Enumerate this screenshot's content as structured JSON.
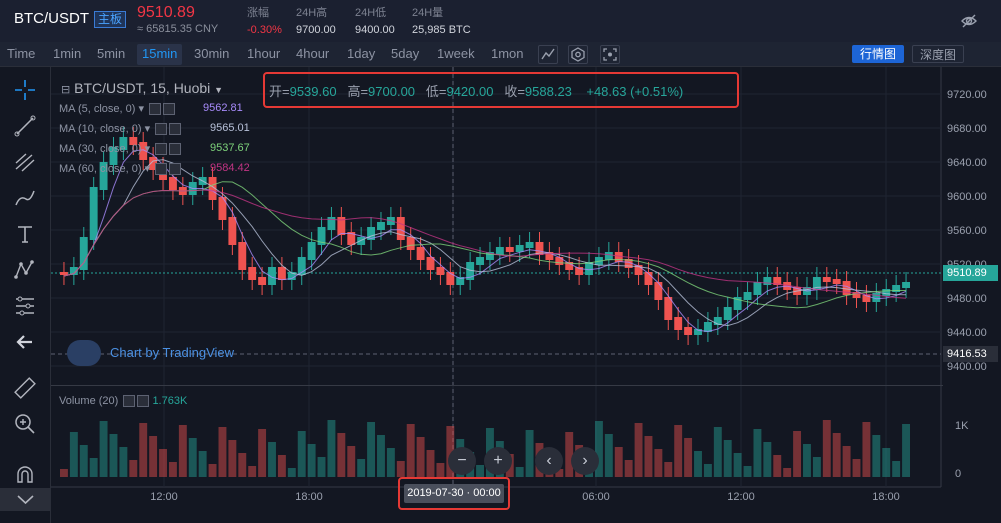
{
  "header": {
    "pair": "BTC/USDT",
    "badge": "主板",
    "price": "9510.89",
    "cny": "≈ 65815.35 CNY",
    "stats": [
      {
        "label": "涨幅",
        "value": "-0.30%",
        "down": true
      },
      {
        "label": "24H高",
        "value": "9700.00"
      },
      {
        "label": "24H低",
        "value": "9400.00"
      },
      {
        "label": "24H量",
        "value": "25,985 BTC"
      }
    ]
  },
  "toolbar": {
    "timeframes": [
      "Time",
      "1min",
      "5min",
      "15min",
      "30min",
      "1hour",
      "4hour",
      "1day",
      "5day",
      "1week",
      "1mon"
    ],
    "active": "15min",
    "market_btn": "行情图",
    "depth_btn": "深度图"
  },
  "legend": {
    "title": "BTC/USDT, 15, Huobi",
    "ohlc": [
      {
        "k": "开=",
        "v": "9539.60"
      },
      {
        "k": "高=",
        "v": "9700.00"
      },
      {
        "k": "低=",
        "v": "9420.00"
      },
      {
        "k": "收=",
        "v": "9588.23"
      }
    ],
    "change": "+48.63 (+0.51%)",
    "ma": [
      {
        "label": "MA (5, close, 0)",
        "value": "9562.81",
        "color": "#a78bfa"
      },
      {
        "label": "MA (10, close, 0)",
        "value": "9565.01",
        "color": "#b7c0d8"
      },
      {
        "label": "MA (30, close, 0)",
        "value": "9537.67",
        "color": "#7ed37b"
      },
      {
        "label": "MA (60, close, 0)",
        "value": "9584.42",
        "color": "#c13584"
      }
    ],
    "volume_label": "Volume (20)",
    "volume_value": "1.763K"
  },
  "watermark": "Chart by TradingView",
  "price_axis": [
    "9720.00",
    "9680.00",
    "9640.00",
    "9600.00",
    "9560.00",
    "9520.00",
    "9480.00",
    "9440.00",
    "9400.00"
  ],
  "current_price_tag": "9510.89",
  "low_tag": "9416.53",
  "volume_axis": [
    "1K",
    "0"
  ],
  "time_axis": [
    "12:00",
    "18:00",
    "06:00",
    "12:00",
    "18:00"
  ],
  "cursor_time": "2019-07-30 · 00:00",
  "colors": {
    "up": "#26a69a",
    "down": "#ef5350",
    "bg": "#131722",
    "accent": "#2196f3"
  }
}
